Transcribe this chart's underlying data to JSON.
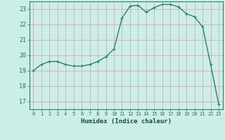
{
  "x": [
    0,
    1,
    2,
    3,
    4,
    5,
    6,
    7,
    8,
    9,
    10,
    11,
    12,
    13,
    14,
    15,
    16,
    17,
    18,
    19,
    20,
    21,
    22,
    23
  ],
  "y": [
    19.0,
    19.4,
    19.6,
    19.6,
    19.4,
    19.3,
    19.3,
    19.4,
    19.6,
    19.9,
    20.4,
    22.4,
    23.2,
    23.25,
    22.8,
    23.1,
    23.3,
    23.3,
    23.15,
    22.7,
    22.5,
    21.85,
    19.4,
    16.8
  ],
  "line_color": "#2e7d6e",
  "marker": "+",
  "marker_size": 3,
  "linewidth": 1.0,
  "xlabel": "Humidex (Indice chaleur)",
  "xlim": [
    -0.5,
    23.5
  ],
  "ylim": [
    16.5,
    23.5
  ],
  "yticks": [
    17,
    18,
    19,
    20,
    21,
    22,
    23
  ],
  "xticks": [
    0,
    1,
    2,
    3,
    4,
    5,
    6,
    7,
    8,
    9,
    10,
    11,
    12,
    13,
    14,
    15,
    16,
    17,
    18,
    19,
    20,
    21,
    22,
    23
  ],
  "bg_color": "#cceee8",
  "grid_color_v": "#d4a0a0",
  "grid_color_h": "#d4a0a0",
  "tick_color": "#2e6b5e",
  "label_color": "#1a4a40",
  "axis_color": "#2e7d6e"
}
